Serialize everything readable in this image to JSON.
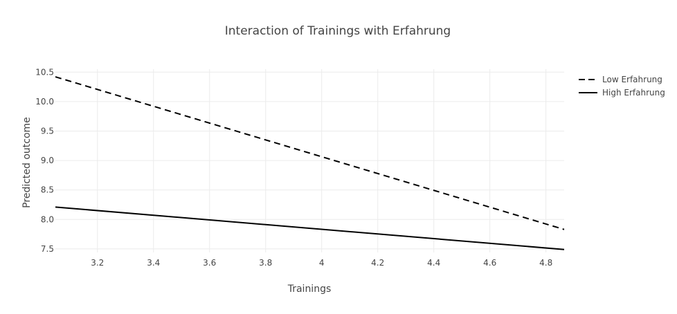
{
  "chart_data": {
    "type": "line",
    "title": "Interaction of Trainings with Erfahrung",
    "xlabel": "Trainings",
    "ylabel": "Predicted outcome",
    "xlim": [
      3.05,
      4.865
    ],
    "ylim": [
      7.44,
      10.55
    ],
    "x_ticks": [
      3.2,
      3.4,
      3.6,
      3.8,
      4.0,
      4.2,
      4.4,
      4.6,
      4.8
    ],
    "x_tick_labels": [
      "3.2",
      "3.4",
      "3.6",
      "3.8",
      "4",
      "4.2",
      "4.4",
      "4.6",
      "4.8"
    ],
    "y_ticks": [
      7.5,
      8.0,
      8.5,
      9.0,
      9.5,
      10.0,
      10.5
    ],
    "y_tick_labels": [
      "7.5",
      "8.0",
      "8.5",
      "9.0",
      "9.5",
      "10.0",
      "10.5"
    ],
    "grid": true,
    "legend_position": "top-right",
    "series": [
      {
        "name": "Low Erfahrung",
        "x": [
          3.05,
          4.865
        ],
        "y": [
          10.42,
          7.83
        ],
        "dash": "dashed",
        "color": "#000000"
      },
      {
        "name": "High Erfahrung",
        "x": [
          3.05,
          4.865
        ],
        "y": [
          8.21,
          7.49
        ],
        "dash": "solid",
        "color": "#000000"
      }
    ]
  }
}
